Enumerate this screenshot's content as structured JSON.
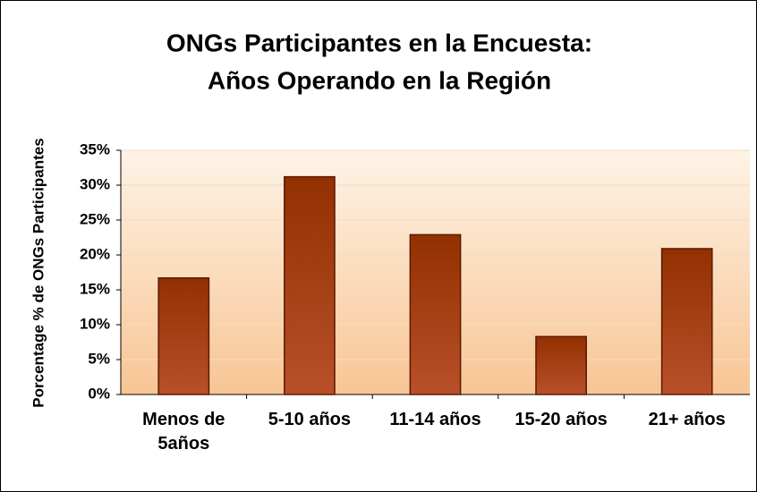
{
  "chart_data": {
    "type": "bar",
    "title": [
      "ONGs Participantes en la Encuesta:",
      "Años Operando en la Región"
    ],
    "y_label": "Porcentage % de ONGs Participantes",
    "categories": [
      "Menos de 5años",
      "5-10 años",
      "11-14 años",
      "15-20 años",
      "21+ años"
    ],
    "values": [
      16.7,
      31.2,
      22.9,
      8.3,
      20.9
    ],
    "color": "#9a3510",
    "ylim": [
      0,
      35
    ],
    "yticks": [
      {
        "value": 0,
        "label": "0%"
      },
      {
        "value": 5,
        "label": "5%"
      },
      {
        "value": 10,
        "label": "10%"
      },
      {
        "value": 15,
        "label": "15%"
      },
      {
        "value": 20,
        "label": "20%"
      },
      {
        "value": 25,
        "label": "25%"
      },
      {
        "value": 30,
        "label": "30%"
      },
      {
        "value": 35,
        "label": "35%"
      }
    ],
    "grid": true
  }
}
